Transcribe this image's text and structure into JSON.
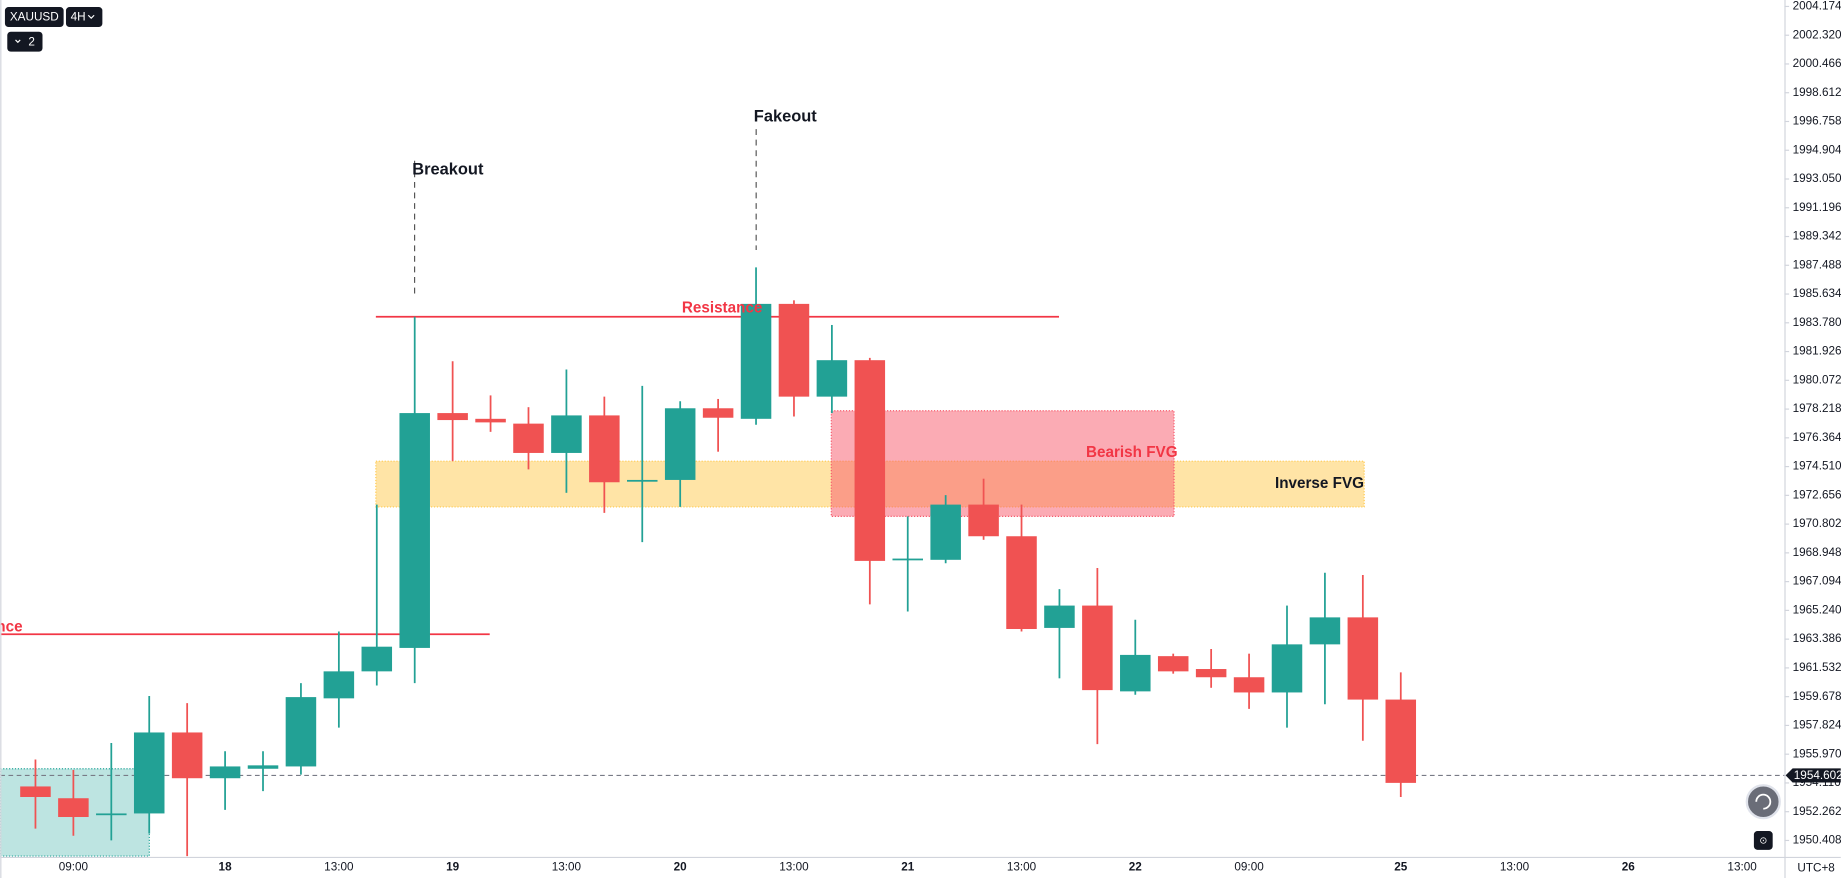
{
  "toolbar": {
    "symbol": "XAUUSD",
    "interval": "4H",
    "indicator_count": 2
  },
  "chart_data": {
    "type": "candlestick",
    "categories": [
      null,
      "09:00",
      null,
      null,
      null,
      "18",
      null,
      null,
      "13:00",
      null,
      null,
      "19",
      null,
      null,
      "13:00",
      null,
      null,
      "20",
      null,
      null,
      "13:00",
      null,
      null,
      "21",
      null,
      null,
      "13:00",
      null,
      null,
      "22",
      null,
      null,
      "09:00",
      null,
      null,
      null,
      "25",
      null,
      null,
      "13:00",
      null,
      null,
      "26",
      null,
      null,
      "13:00"
    ],
    "open": [
      1953.89,
      1953.13,
      1952.07,
      1952.15,
      1957.37,
      1954.42,
      1955.03,
      1955.18,
      1959.57,
      1961.31,
      1962.82,
      1977.96,
      1977.59,
      1977.28,
      1975.39,
      1977.81,
      1973.57,
      1973.65,
      1978.27,
      1977.59,
      1985.0,
      1979.02,
      1981.37,
      1968.5,
      1968.5,
      1972.06,
      1970.02,
      1964.11,
      1965.55,
      1960.02,
      1962.29,
      1961.46,
      1960.93,
      1959.95,
      1963.05,
      1964.79,
      1959.49,
      null,
      null,
      null,
      null,
      null,
      null,
      null,
      null,
      null
    ],
    "high": [
      1955.63,
      1954.95,
      1956.69,
      1959.72,
      1959.26,
      1956.16,
      1956.16,
      1960.55,
      1963.88,
      1972.06,
      1984.17,
      1981.3,
      1979.1,
      1978.34,
      1980.77,
      1979.02,
      1979.71,
      1978.72,
      1978.87,
      1987.35,
      1985.23,
      1983.64,
      1981.52,
      1971.3,
      1972.67,
      1973.73,
      1972.06,
      1966.61,
      1967.97,
      1964.64,
      1962.45,
      1962.75,
      1962.45,
      1965.55,
      1967.67,
      1967.52,
      1961.24,
      null,
      null,
      null,
      null,
      null,
      null,
      null,
      null,
      null
    ],
    "low": [
      1951.17,
      1950.71,
      1950.41,
      1950.86,
      1949.4,
      1952.38,
      1953.59,
      1954.65,
      1957.68,
      1960.4,
      1960.55,
      1974.86,
      1976.75,
      1974.33,
      1972.82,
      1971.53,
      1969.64,
      1971.91,
      1975.47,
      1977.21,
      1977.74,
      1977.96,
      1965.63,
      1965.17,
      1968.28,
      1969.79,
      1963.88,
      1960.86,
      1956.62,
      1959.8,
      1961.16,
      1960.25,
      1958.89,
      1957.68,
      1959.19,
      1956.84,
      1953.21,
      null,
      null,
      null,
      null,
      null,
      null,
      null,
      null,
      null
    ],
    "close": [
      1953.21,
      1951.92,
      1952.15,
      1957.37,
      1954.42,
      1955.18,
      1955.25,
      1959.65,
      1961.31,
      1962.9,
      1977.96,
      1977.51,
      1977.36,
      1975.39,
      1977.81,
      1973.5,
      1973.65,
      1978.27,
      1977.66,
      1985.0,
      1979.02,
      1981.37,
      1968.43,
      1968.58,
      1972.06,
      1970.02,
      1964.04,
      1965.55,
      1960.1,
      1962.37,
      1961.31,
      1960.93,
      1959.95,
      1963.05,
      1964.79,
      1959.49,
      1954.12,
      null,
      null,
      null,
      null,
      null,
      null,
      null,
      null,
      null
    ],
    "up_color": "#22a195",
    "down_color": "#f05252",
    "ylim": [
      1949.35,
      2004.59
    ],
    "yticks": [
      1950.408,
      1952.262,
      1954.116,
      {
        "value": 1955.97,
        "label": "1955.970"
      },
      1957.824,
      1959.678,
      1961.532,
      1963.386,
      {
        "value": 1965.24,
        "label": "1965.240"
      },
      1967.094,
      1968.948,
      1970.802,
      1972.656,
      {
        "value": 1974.51,
        "label": "1974.510"
      },
      1976.364,
      1978.218,
      1980.072,
      1981.926,
      {
        "value": 1983.78,
        "label": "1983.780"
      },
      1985.634,
      1987.488,
      1989.342,
      1991.196,
      {
        "value": 1993.05,
        "label": "1993.050"
      },
      1994.904,
      1996.758,
      1998.612,
      2000.466,
      {
        "value": 2002.32,
        "label": "2002.320"
      },
      2004.174
    ],
    "grid": false,
    "last_price": 1954.602,
    "timezone": "UTC+8",
    "annotations": [
      {
        "text": "Breakout"
      },
      {
        "text": "Fakeout"
      }
    ],
    "levels": [
      {
        "name": "Resistance",
        "value": 1984.17,
        "color": "#f23645"
      },
      {
        "name": "nce",
        "value": 1963.7,
        "color": "#f23645"
      }
    ],
    "zones": [
      {
        "name": "Inverse FVG",
        "top": 1974.86,
        "bottom": 1971.91,
        "color": "#ffc94d"
      },
      {
        "name": "Bearish FVG",
        "top": 1978.11,
        "bottom": 1971.3,
        "color": "#f7586a"
      },
      {
        "top": 1955.03,
        "bottom": 1949.4,
        "color": "#26a69a"
      }
    ]
  }
}
